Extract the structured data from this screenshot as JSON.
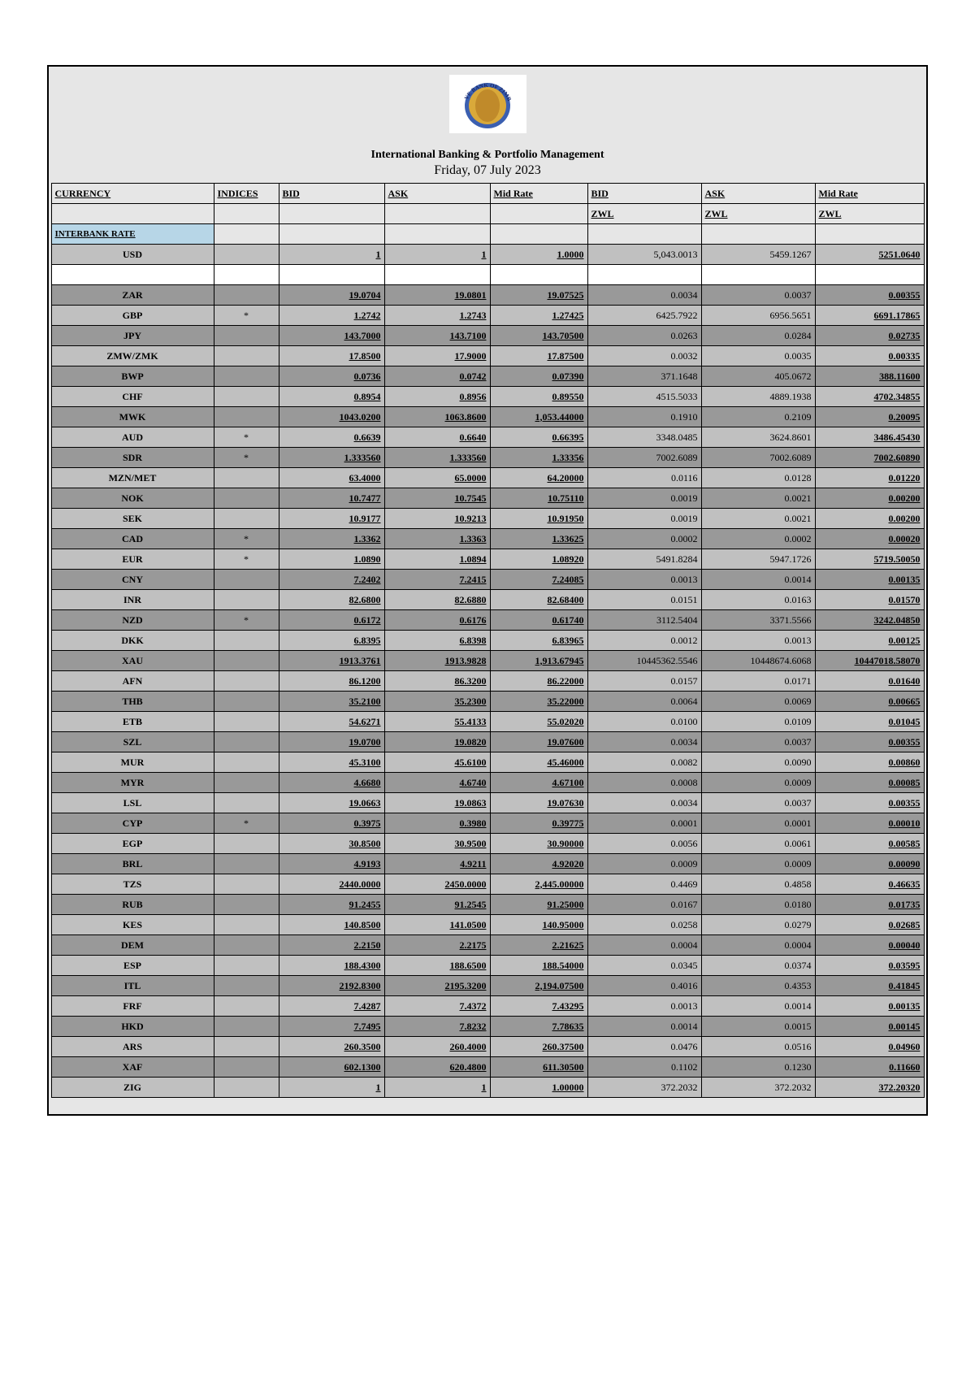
{
  "header": {
    "title1": "International Banking & Portfolio Management",
    "title2": "Friday, 07 July 2023",
    "logo_text_top": "BANK OF",
    "logo_text_left": "RESERVE",
    "logo_text_right": "ZIMBABWE"
  },
  "columns": {
    "currency": "CURRENCY",
    "indices": "INDICES",
    "bid": "BID",
    "ask": "ASK",
    "mid": "Mid Rate",
    "bid_zwl_top": "BID",
    "ask_zwl_top": "ASK",
    "mid_zwl_top": "Mid Rate",
    "zwl": "ZWL"
  },
  "section_label": "INTERBANK RATE",
  "rows": [
    {
      "cur": "USD",
      "ind": "",
      "bid": "1",
      "ask": "1",
      "mid": "1.0000",
      "bzwl": "5,043.0013",
      "azwl": "5459.1267",
      "mzwl": "5251.0640",
      "shade": "light"
    },
    {
      "spacer": true
    },
    {
      "cur": "ZAR",
      "ind": "",
      "bid": "19.0704",
      "ask": "19.0801",
      "mid": "19.07525",
      "bzwl": "0.0034",
      "azwl": "0.0037",
      "mzwl": "0.00355",
      "shade": "dark"
    },
    {
      "cur": "GBP",
      "ind": "*",
      "bid": "1.2742",
      "ask": "1.2743",
      "mid": "1.27425",
      "bzwl": "6425.7922",
      "azwl": "6956.5651",
      "mzwl": "6691.17865",
      "shade": "light"
    },
    {
      "cur": "JPY",
      "ind": "",
      "bid": "143.7000",
      "ask": "143.7100",
      "mid": "143.70500",
      "bzwl": "0.0263",
      "azwl": "0.0284",
      "mzwl": "0.02735",
      "shade": "dark"
    },
    {
      "cur": "ZMW/ZMK",
      "ind": "",
      "bid": "17.8500",
      "ask": "17.9000",
      "mid": "17.87500",
      "bzwl": "0.0032",
      "azwl": "0.0035",
      "mzwl": "0.00335",
      "shade": "light"
    },
    {
      "cur": "BWP",
      "ind": "",
      "bid": "0.0736",
      "ask": "0.0742",
      "mid": "0.07390",
      "bzwl": "371.1648",
      "azwl": "405.0672",
      "mzwl": "388.11600",
      "shade": "dark"
    },
    {
      "cur": "CHF",
      "ind": "",
      "bid": "0.8954",
      "ask": "0.8956",
      "mid": "0.89550",
      "bzwl": "4515.5033",
      "azwl": "4889.1938",
      "mzwl": "4702.34855",
      "shade": "light"
    },
    {
      "cur": "MWK",
      "ind": "",
      "bid": "1043.0200",
      "ask": "1063.8600",
      "mid": "1,053.44000",
      "bzwl": "0.1910",
      "azwl": "0.2109",
      "mzwl": "0.20095",
      "shade": "dark"
    },
    {
      "cur": "AUD",
      "ind": "*",
      "bid": "0.6639",
      "ask": "0.6640",
      "mid": "0.66395",
      "bzwl": "3348.0485",
      "azwl": "3624.8601",
      "mzwl": "3486.45430",
      "shade": "light"
    },
    {
      "cur": "SDR",
      "ind": "*",
      "bid": "1.333560",
      "ask": "1.333560",
      "mid": "1.33356",
      "bzwl": "7002.6089",
      "azwl": "7002.6089",
      "mzwl": "7002.60890",
      "shade": "dark"
    },
    {
      "cur": "MZN/MET",
      "ind": "",
      "bid": "63.4000",
      "ask": "65.0000",
      "mid": "64.20000",
      "bzwl": "0.0116",
      "azwl": "0.0128",
      "mzwl": "0.01220",
      "shade": "light"
    },
    {
      "cur": "NOK",
      "ind": "",
      "bid": "10.7477",
      "ask": "10.7545",
      "mid": "10.75110",
      "bzwl": "0.0019",
      "azwl": "0.0021",
      "mzwl": "0.00200",
      "shade": "dark"
    },
    {
      "cur": "SEK",
      "ind": "",
      "bid": "10.9177",
      "ask": "10.9213",
      "mid": "10.91950",
      "bzwl": "0.0019",
      "azwl": "0.0021",
      "mzwl": "0.00200",
      "shade": "light"
    },
    {
      "cur": "CAD",
      "ind": "*",
      "bid": "1.3362",
      "ask": "1.3363",
      "mid": "1.33625",
      "bzwl": "0.0002",
      "azwl": "0.0002",
      "mzwl": "0.00020",
      "shade": "dark"
    },
    {
      "cur": "EUR",
      "ind": "*",
      "bid": "1.0890",
      "ask": "1.0894",
      "mid": "1.08920",
      "bzwl": "5491.8284",
      "azwl": "5947.1726",
      "mzwl": "5719.50050",
      "shade": "light"
    },
    {
      "cur": "CNY",
      "ind": "",
      "bid": "7.2402",
      "ask": "7.2415",
      "mid": "7.24085",
      "bzwl": "0.0013",
      "azwl": "0.0014",
      "mzwl": "0.00135",
      "shade": "dark"
    },
    {
      "cur": "INR",
      "ind": "",
      "bid": "82.6800",
      "ask": "82.6880",
      "mid": "82.68400",
      "bzwl": "0.0151",
      "azwl": "0.0163",
      "mzwl": "0.01570",
      "shade": "light"
    },
    {
      "cur": "NZD",
      "ind": "*",
      "bid": "0.6172",
      "ask": "0.6176",
      "mid": "0.61740",
      "bzwl": "3112.5404",
      "azwl": "3371.5566",
      "mzwl": "3242.04850",
      "shade": "dark"
    },
    {
      "cur": "DKK",
      "ind": "",
      "bid": "6.8395",
      "ask": "6.8398",
      "mid": "6.83965",
      "bzwl": "0.0012",
      "azwl": "0.0013",
      "mzwl": "0.00125",
      "shade": "light"
    },
    {
      "cur": "XAU",
      "ind": "",
      "bid": "1913.3761",
      "ask": "1913.9828",
      "mid": "1,913.67945",
      "bzwl": "10445362.5546",
      "azwl": "10448674.6068",
      "mzwl": "10447018.58070",
      "shade": "dark"
    },
    {
      "cur": "AFN",
      "ind": "",
      "bid": "86.1200",
      "ask": "86.3200",
      "mid": "86.22000",
      "bzwl": "0.0157",
      "azwl": "0.0171",
      "mzwl": "0.01640",
      "shade": "light"
    },
    {
      "cur": "THB",
      "ind": "",
      "bid": "35.2100",
      "ask": "35.2300",
      "mid": "35.22000",
      "bzwl": "0.0064",
      "azwl": "0.0069",
      "mzwl": "0.00665",
      "shade": "dark"
    },
    {
      "cur": "ETB",
      "ind": "",
      "bid": "54.6271",
      "ask": "55.4133",
      "mid": "55.02020",
      "bzwl": "0.0100",
      "azwl": "0.0109",
      "mzwl": "0.01045",
      "shade": "light"
    },
    {
      "cur": "SZL",
      "ind": "",
      "bid": "19.0700",
      "ask": "19.0820",
      "mid": "19.07600",
      "bzwl": "0.0034",
      "azwl": "0.0037",
      "mzwl": "0.00355",
      "shade": "dark"
    },
    {
      "cur": "MUR",
      "ind": "",
      "bid": "45.3100",
      "ask": "45.6100",
      "mid": "45.46000",
      "bzwl": "0.0082",
      "azwl": "0.0090",
      "mzwl": "0.00860",
      "shade": "light"
    },
    {
      "cur": "MYR",
      "ind": "",
      "bid": "4.6680",
      "ask": "4.6740",
      "mid": "4.67100",
      "bzwl": "0.0008",
      "azwl": "0.0009",
      "mzwl": "0.00085",
      "shade": "dark"
    },
    {
      "cur": "LSL",
      "ind": "",
      "bid": "19.0663",
      "ask": "19.0863",
      "mid": "19.07630",
      "bzwl": "0.0034",
      "azwl": "0.0037",
      "mzwl": "0.00355",
      "shade": "light"
    },
    {
      "cur": "CYP",
      "ind": "*",
      "bid": "0.3975",
      "ask": "0.3980",
      "mid": "0.39775",
      "bzwl": "0.0001",
      "azwl": "0.0001",
      "mzwl": "0.00010",
      "shade": "dark"
    },
    {
      "cur": "EGP",
      "ind": "",
      "bid": "30.8500",
      "ask": "30.9500",
      "mid": "30.90000",
      "bzwl": "0.0056",
      "azwl": "0.0061",
      "mzwl": "0.00585",
      "shade": "light"
    },
    {
      "cur": "BRL",
      "ind": "",
      "bid": "4.9193",
      "ask": "4.9211",
      "mid": "4.92020",
      "bzwl": "0.0009",
      "azwl": "0.0009",
      "mzwl": "0.00090",
      "shade": "dark"
    },
    {
      "cur": "TZS",
      "ind": "",
      "bid": "2440.0000",
      "ask": "2450.0000",
      "mid": "2,445.00000",
      "bzwl": "0.4469",
      "azwl": "0.4858",
      "mzwl": "0.46635",
      "shade": "light"
    },
    {
      "cur": "RUB",
      "ind": "",
      "bid": "91.2455",
      "ask": "91.2545",
      "mid": "91.25000",
      "bzwl": "0.0167",
      "azwl": "0.0180",
      "mzwl": "0.01735",
      "shade": "dark"
    },
    {
      "cur": "KES",
      "ind": "",
      "bid": "140.8500",
      "ask": "141.0500",
      "mid": "140.95000",
      "bzwl": "0.0258",
      "azwl": "0.0279",
      "mzwl": "0.02685",
      "shade": "light"
    },
    {
      "cur": "DEM",
      "ind": "",
      "bid": "2.2150",
      "ask": "2.2175",
      "mid": "2.21625",
      "bzwl": "0.0004",
      "azwl": "0.0004",
      "mzwl": "0.00040",
      "shade": "dark"
    },
    {
      "cur": "ESP",
      "ind": "",
      "bid": "188.4300",
      "ask": "188.6500",
      "mid": "188.54000",
      "bzwl": "0.0345",
      "azwl": "0.0374",
      "mzwl": "0.03595",
      "shade": "light"
    },
    {
      "cur": "ITL",
      "ind": "",
      "bid": "2192.8300",
      "ask": "2195.3200",
      "mid": "2,194.07500",
      "bzwl": "0.4016",
      "azwl": "0.4353",
      "mzwl": "0.41845",
      "shade": "dark"
    },
    {
      "cur": "FRF",
      "ind": "",
      "bid": "7.4287",
      "ask": "7.4372",
      "mid": "7.43295",
      "bzwl": "0.0013",
      "azwl": "0.0014",
      "mzwl": "0.00135",
      "shade": "light"
    },
    {
      "cur": "HKD",
      "ind": "",
      "bid": "7.7495",
      "ask": "7.8232",
      "mid": "7.78635",
      "bzwl": "0.0014",
      "azwl": "0.0015",
      "mzwl": "0.00145",
      "shade": "dark"
    },
    {
      "cur": "ARS",
      "ind": "",
      "bid": "260.3500",
      "ask": "260.4000",
      "mid": "260.37500",
      "bzwl": "0.0476",
      "azwl": "0.0516",
      "mzwl": "0.04960",
      "shade": "light"
    },
    {
      "cur": "XAF",
      "ind": "",
      "bid": "602.1300",
      "ask": "620.4800",
      "mid": "611.30500",
      "bzwl": "0.1102",
      "azwl": "0.1230",
      "mzwl": "0.11660",
      "shade": "dark"
    },
    {
      "cur": "ZIG",
      "ind": "",
      "bid": "1",
      "ask": "1",
      "mid": "1.00000",
      "bzwl": "372.2032",
      "azwl": "372.2032",
      "mzwl": "372.20320",
      "shade": "light"
    }
  ],
  "colors": {
    "dark_row": "#999999",
    "light_row": "#c0c0c0",
    "page_bg": "#e6e6e6",
    "interbank_bg": "#b7d6e7"
  }
}
